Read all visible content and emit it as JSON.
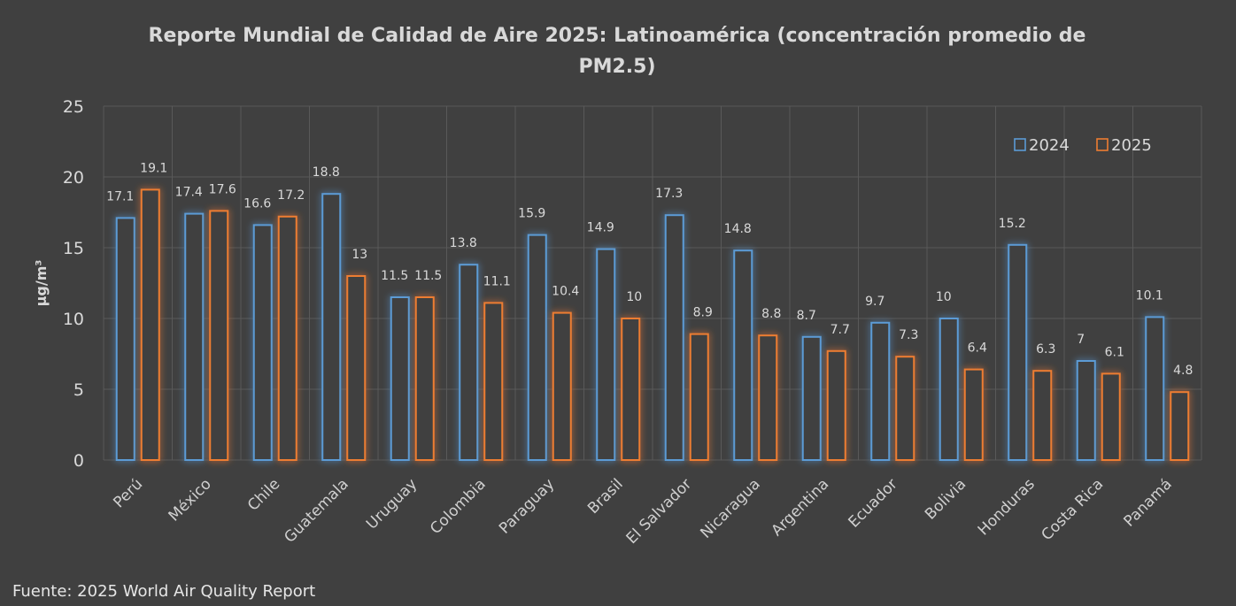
{
  "chart_data": {
    "type": "bar",
    "title_line1": "Reporte Mundial de Calidad de Aire 2025: Latinoamérica (concentración promedio de",
    "title_line2": "PM2.5)",
    "ylabel": "µg/m³",
    "ylim": [
      0,
      25
    ],
    "yticks": [
      0,
      5,
      10,
      15,
      20,
      25
    ],
    "grid": true,
    "legend_position": "top-right",
    "categories": [
      "Perú",
      "México",
      "Chile",
      "Guatemala",
      "Uruguay",
      "Colombia",
      "Paraguay",
      "Brasil",
      "El Salvador",
      "Nicaragua",
      "Argentina",
      "Ecuador",
      "Bolivia",
      "Honduras",
      "Costa Rica",
      "Panamá"
    ],
    "series": [
      {
        "name": "2024",
        "color": "#5b9bd5",
        "values": [
          17.1,
          17.4,
          16.6,
          18.8,
          11.5,
          13.8,
          15.9,
          14.9,
          17.3,
          14.8,
          8.7,
          9.7,
          10,
          15.2,
          7,
          10.1
        ]
      },
      {
        "name": "2025",
        "color": "#ed7d31",
        "values": [
          19.1,
          17.6,
          17.2,
          13,
          11.5,
          11.1,
          10.4,
          10,
          8.9,
          8.8,
          7.7,
          7.3,
          6.4,
          6.3,
          6.1,
          4.8
        ]
      }
    ],
    "source": "Fuente: 2025 World Air Quality  Report"
  }
}
